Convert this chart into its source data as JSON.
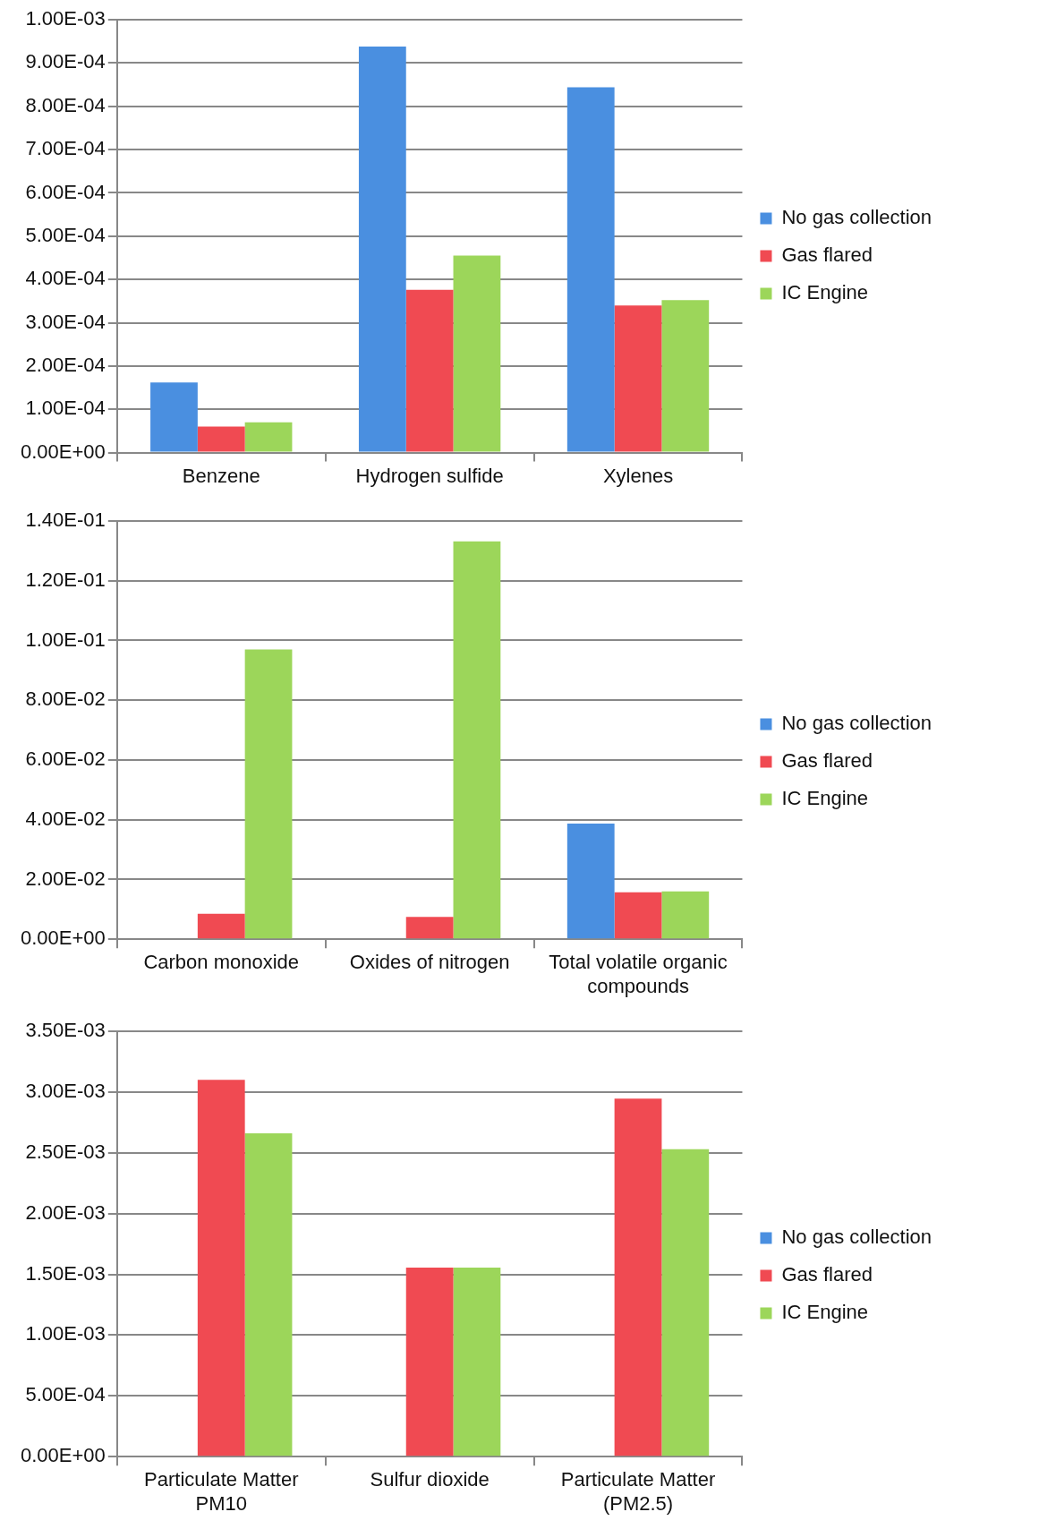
{
  "chart_data": [
    {
      "type": "bar",
      "categories": [
        "Benzene",
        "Hydrogen sulfide",
        "Xylenes"
      ],
      "series": [
        {
          "name": "No gas collection",
          "color": "#4a8fe0",
          "values": [
            0.000162,
            0.000938,
            0.000844
          ]
        },
        {
          "name": "Gas flared",
          "color": "#f04a52",
          "values": [
            6e-05,
            0.000376,
            0.00034
          ]
        },
        {
          "name": "IC Engine",
          "color": "#9cd65a",
          "values": [
            7e-05,
            0.000455,
            0.000352
          ]
        }
      ],
      "ylim": [
        0,
        0.001
      ],
      "yticks": [
        {
          "value": 0,
          "label": "0.00E+00"
        },
        {
          "value": 0.0001,
          "label": "1.00E-04"
        },
        {
          "value": 0.0002,
          "label": "2.00E-04"
        },
        {
          "value": 0.0003,
          "label": "3.00E-04"
        },
        {
          "value": 0.0004,
          "label": "4.00E-04"
        },
        {
          "value": 0.0005,
          "label": "5.00E-04"
        },
        {
          "value": 0.0006,
          "label": "6.00E-04"
        },
        {
          "value": 0.0007,
          "label": "7.00E-04"
        },
        {
          "value": 0.0008,
          "label": "8.00E-04"
        },
        {
          "value": 0.0009,
          "label": "9.00E-04"
        },
        {
          "value": 0.001,
          "label": "1.00E-03"
        }
      ],
      "grid": "y",
      "legend": "right"
    },
    {
      "type": "bar",
      "categories": [
        "Carbon monoxide",
        "Oxides of nitrogen",
        "Total volatile organic compounds"
      ],
      "series": [
        {
          "name": "No gas collection",
          "color": "#4a8fe0",
          "values": [
            null,
            null,
            0.0387
          ]
        },
        {
          "name": "Gas flared",
          "color": "#f04a52",
          "values": [
            0.0085,
            0.0075,
            0.0157
          ]
        },
        {
          "name": "IC Engine",
          "color": "#9cd65a",
          "values": [
            0.097,
            0.1332,
            0.016
          ]
        }
      ],
      "ylim": [
        0,
        0.14
      ],
      "yticks": [
        {
          "value": 0,
          "label": "0.00E+00"
        },
        {
          "value": 0.02,
          "label": "2.00E-02"
        },
        {
          "value": 0.04,
          "label": "4.00E-02"
        },
        {
          "value": 0.06,
          "label": "6.00E-02"
        },
        {
          "value": 0.08,
          "label": "8.00E-02"
        },
        {
          "value": 0.1,
          "label": "1.00E-01"
        },
        {
          "value": 0.12,
          "label": "1.20E-01"
        },
        {
          "value": 0.14,
          "label": "1.40E-01"
        }
      ],
      "grid": "y",
      "legend": "right"
    },
    {
      "type": "bar",
      "categories": [
        "Particulate Matter PM10",
        "Sulfur dioxide",
        "Particulate Matter (PM2.5)"
      ],
      "series": [
        {
          "name": "No gas collection",
          "color": "#4a8fe0",
          "values": [
            null,
            null,
            null
          ]
        },
        {
          "name": "Gas flared",
          "color": "#f04a52",
          "values": [
            0.0031,
            0.001555,
            0.002945
          ]
        },
        {
          "name": "IC Engine",
          "color": "#9cd65a",
          "values": [
            0.00266,
            0.001555,
            0.00253
          ]
        }
      ],
      "ylim": [
        0,
        0.0035
      ],
      "yticks": [
        {
          "value": 0,
          "label": "0.00E+00"
        },
        {
          "value": 0.0005,
          "label": "5.00E-04"
        },
        {
          "value": 0.001,
          "label": "1.00E-03"
        },
        {
          "value": 0.0015,
          "label": "1.50E-03"
        },
        {
          "value": 0.002,
          "label": "2.00E-03"
        },
        {
          "value": 0.0025,
          "label": "2.50E-03"
        },
        {
          "value": 0.003,
          "label": "3.00E-03"
        },
        {
          "value": 0.0035,
          "label": "3.50E-03"
        }
      ],
      "grid": "y",
      "legend": "right"
    }
  ]
}
